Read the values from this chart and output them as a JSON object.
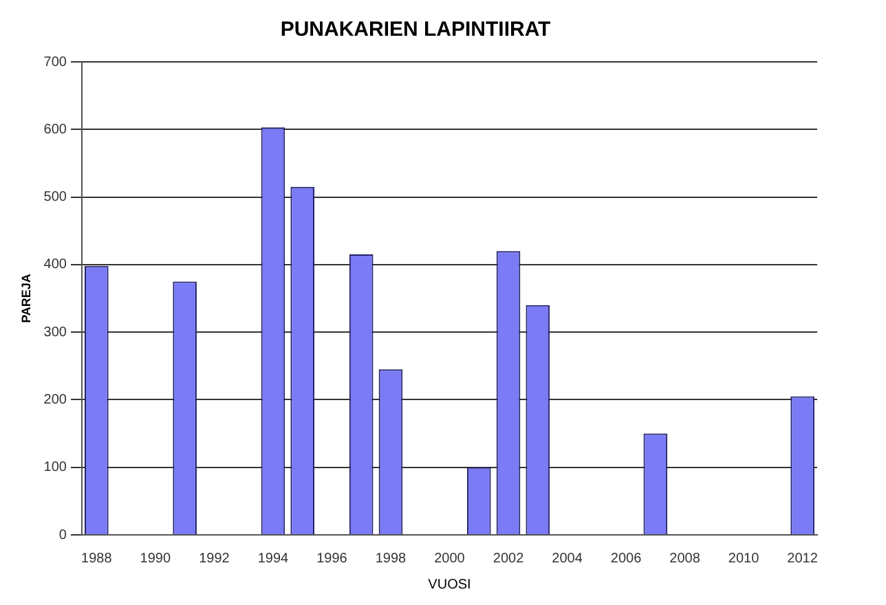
{
  "chart_data": {
    "type": "bar",
    "title": "PUNAKARIEN LAPINTIIRAT",
    "xlabel": "VUOSI",
    "ylabel": "PAREJA",
    "categories": [
      "1988",
      null,
      "1990",
      null,
      "1992",
      null,
      "1994",
      null,
      "1996",
      null,
      "1998",
      null,
      "2000",
      null,
      "2002",
      null,
      "2004",
      null,
      "2006",
      null,
      "2008",
      null,
      "2010",
      null,
      "2012"
    ],
    "values": [
      398,
      null,
      null,
      375,
      null,
      null,
      603,
      515,
      null,
      415,
      245,
      null,
      null,
      100,
      420,
      340,
      null,
      null,
      null,
      150,
      null,
      null,
      null,
      null,
      205
    ],
    "color": "#7b7bf5",
    "ylim": [
      0,
      700
    ],
    "yticks": [
      0,
      100,
      200,
      300,
      400,
      500,
      600,
      700
    ],
    "grid": "y",
    "legend": false
  }
}
